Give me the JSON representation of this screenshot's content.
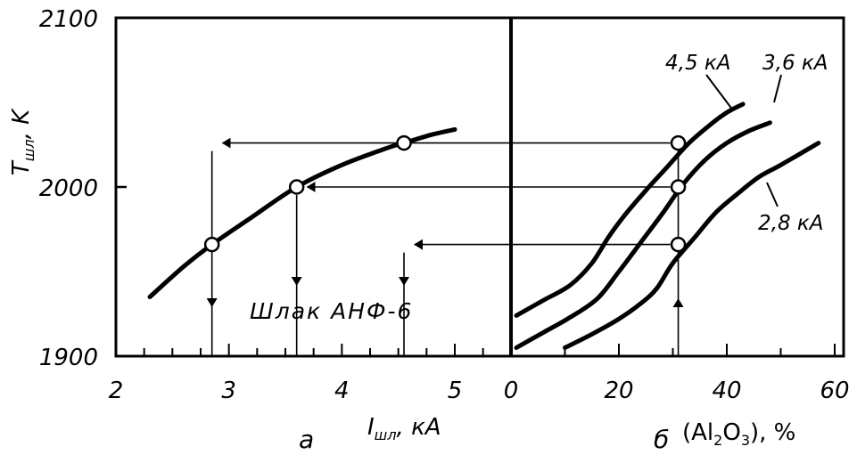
{
  "chart_data": [
    {
      "type": "line",
      "panel": "а",
      "xlabel": "I",
      "xlabel_sub": "шл",
      "xlabel_unit": ", кА",
      "ylabel": "T",
      "ylabel_sub": "шл",
      "ylabel_unit": ", K",
      "xlim": [
        2,
        5.5
      ],
      "ylim": [
        1900,
        2100
      ],
      "x_ticks": [
        2,
        3,
        4,
        5
      ],
      "y_ticks": [
        1900,
        2000,
        2100
      ],
      "annotation": "Шлак АНФ-6",
      "series": [
        {
          "name": "",
          "x": [
            2.3,
            2.6,
            2.85,
            3.2,
            3.6,
            4.0,
            4.4,
            4.55,
            4.8,
            5.0
          ],
          "y": [
            1935,
            1953,
            1966,
            1982,
            2000,
            2013,
            2023,
            2026,
            2031,
            2034
          ]
        }
      ],
      "points": [
        {
          "x": 2.85,
          "y": 1966
        },
        {
          "x": 3.6,
          "y": 2000
        },
        {
          "x": 4.55,
          "y": 2026
        }
      ]
    },
    {
      "type": "line",
      "panel": "б",
      "xlabel": "(Al",
      "xlabel_sub1": "2",
      "xlabel_mid": "O",
      "xlabel_sub2": "3",
      "xlabel_unit": "), %",
      "xlim": [
        0,
        60
      ],
      "ylim": [
        1900,
        2100
      ],
      "x_ticks": [
        0,
        20,
        40,
        60
      ],
      "series": [
        {
          "name": "4,5 кА",
          "x": [
            1,
            6,
            11,
            15,
            18,
            21,
            25,
            29,
            33,
            37,
            40,
            43
          ],
          "y": [
            1924,
            1933,
            1942,
            1955,
            1970,
            1983,
            1998,
            2012,
            2026,
            2037,
            2044,
            2049
          ]
        },
        {
          "name": "3,6 кА",
          "x": [
            1,
            6,
            11,
            16,
            20,
            24,
            28,
            32,
            36,
            40,
            44,
            48
          ],
          "y": [
            1905,
            1914,
            1923,
            1934,
            1950,
            1967,
            1984,
            2002,
            2016,
            2026,
            2033,
            2038
          ]
        },
        {
          "name": "2,8 кА",
          "x": [
            10,
            15,
            20,
            24,
            27,
            30,
            34,
            38,
            42,
            46,
            50,
            57
          ],
          "y": [
            1905,
            1913,
            1922,
            1931,
            1940,
            1955,
            1970,
            1985,
            1996,
            2006,
            2013,
            2026
          ]
        }
      ],
      "points": [
        {
          "x": 31,
          "y": 2026
        },
        {
          "x": 31,
          "y": 2000
        },
        {
          "x": 31,
          "y": 1966
        }
      ]
    }
  ]
}
